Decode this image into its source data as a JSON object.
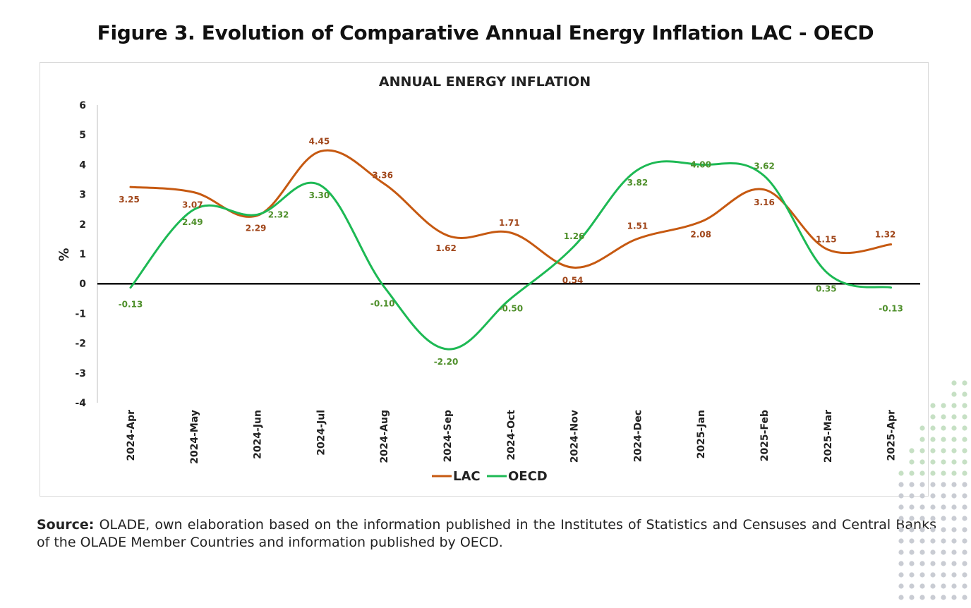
{
  "figure_title": "Figure 3. Evolution of Comparative Annual Energy Inflation LAC - OECD",
  "source": {
    "label": "Source:",
    "text": " OLADE, own elaboration based on the information published in the Institutes of Statistics and Censuses and Central Banks of the OLADE Member Countries and information published by OECD."
  },
  "colors": {
    "lac": "#C65911",
    "oecd": "#1DB954",
    "oecd_label": "#4E8F2A",
    "lac_label": "#A0461A",
    "zero_line": "#000000",
    "dots_gray": "#c9ccd3",
    "dots_green": "#c6e0c4"
  },
  "chart_data": {
    "type": "line",
    "title": "ANNUAL ENERGY INFLATION",
    "xlabel": "",
    "ylabel": "%",
    "ylim": [
      -4,
      6
    ],
    "yticks": [
      "-4",
      "-3",
      "-2",
      "-1",
      "0",
      "1",
      "2",
      "3",
      "4",
      "5",
      "6"
    ],
    "categories": [
      "2024-Apr",
      "2024-May",
      "2024-Jun",
      "2024-Jul",
      "2024-Aug",
      "2024-Sep",
      "2024-Oct",
      "2024-Nov",
      "2024-Dec",
      "2025-Jan",
      "2025-Feb",
      "2025-Mar",
      "2025-Apr"
    ],
    "series": [
      {
        "name": "LAC",
        "values": [
          3.25,
          3.07,
          2.29,
          4.45,
          3.36,
          1.62,
          1.71,
          0.54,
          1.51,
          2.08,
          3.16,
          1.15,
          1.32
        ],
        "labels": [
          "3.25",
          "3.07",
          "2.29",
          "4.45",
          "3.36",
          "1.62",
          "1.71",
          "0.54",
          "1.51",
          "2.08",
          "3.16",
          "1.15",
          "1.32"
        ]
      },
      {
        "name": "OECD",
        "values": [
          -0.13,
          2.49,
          2.32,
          3.3,
          -0.1,
          -2.2,
          -0.5,
          1.26,
          3.82,
          4.0,
          3.62,
          0.35,
          -0.13
        ],
        "labels": [
          "-0.13",
          "2.49",
          "2.32",
          "3.30",
          "-0.10",
          "-2.20",
          "-0.50",
          "1.26",
          "3.82",
          "4.00",
          "3.62",
          "0.35",
          "-0.13"
        ]
      }
    ],
    "grid": false,
    "legend": "bottom-center"
  }
}
